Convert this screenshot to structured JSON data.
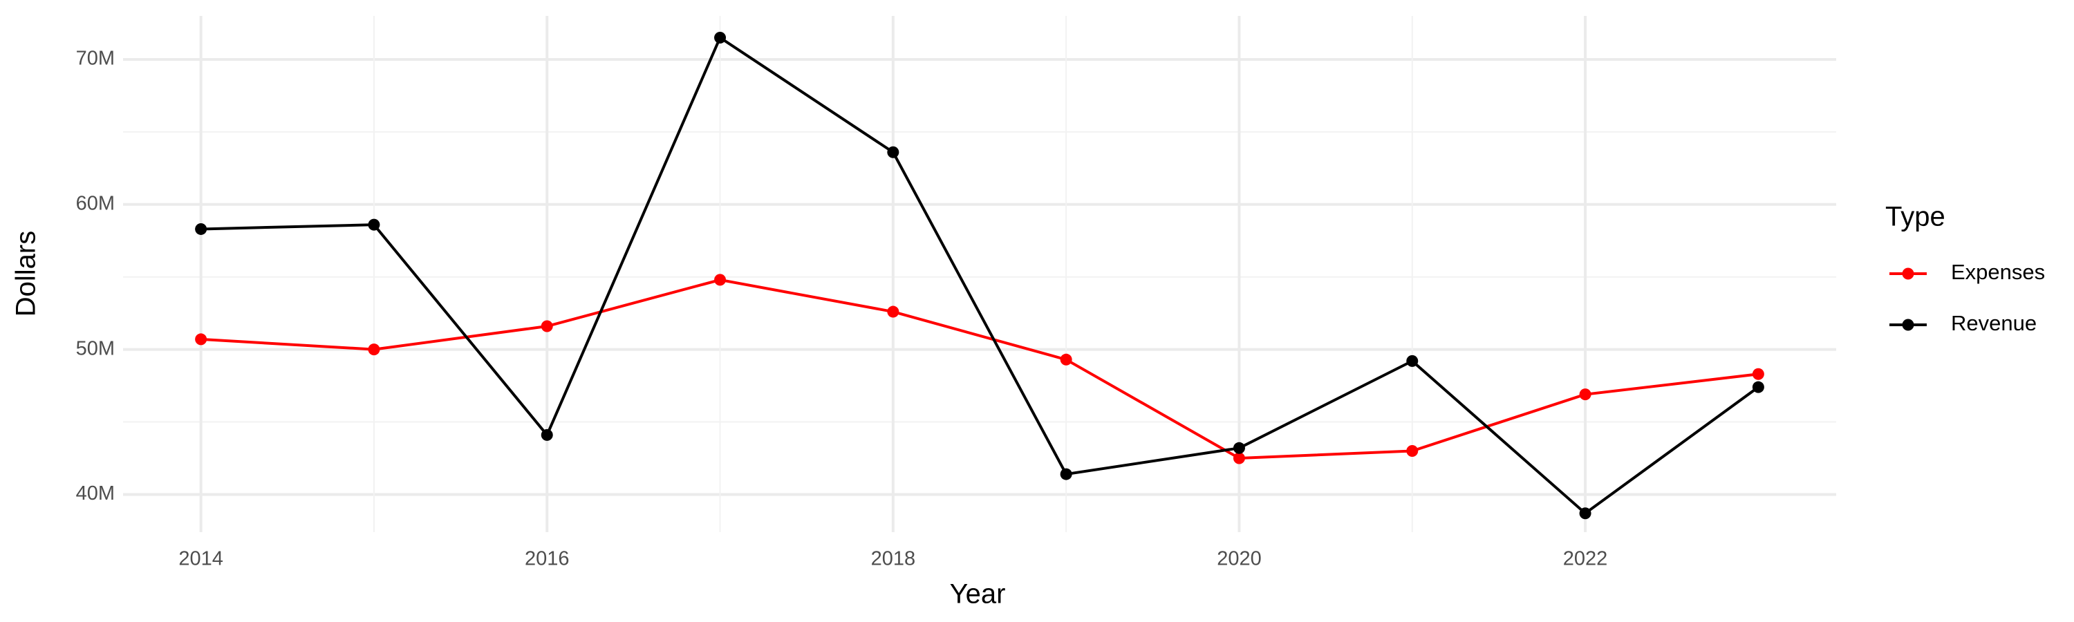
{
  "chart_data": {
    "type": "line",
    "x_label": "Year",
    "y_label": "Dollars",
    "legend_title": "Type",
    "x": [
      2014,
      2015,
      2016,
      2017,
      2018,
      2019,
      2020,
      2021,
      2022,
      2023
    ],
    "series": [
      {
        "name": "Expenses",
        "color": "#ff0000",
        "values": [
          50700000,
          50000000,
          51600000,
          54800000,
          52600000,
          49300000,
          42500000,
          43000000,
          46900000,
          48300000
        ]
      },
      {
        "name": "Revenue",
        "color": "#000000",
        "values": [
          58300000,
          58600000,
          44100000,
          71500000,
          63600000,
          41400000,
          43200000,
          49200000,
          38700000,
          47400000
        ]
      }
    ],
    "xlim": [
      2013.55,
      2023.45
    ],
    "ylim": [
      37400000,
      73000000
    ],
    "xticks": [
      2014,
      2016,
      2018,
      2020,
      2022
    ],
    "yticks": [
      {
        "value": 40000000,
        "label": "40M"
      },
      {
        "value": 50000000,
        "label": "50M"
      },
      {
        "value": 60000000,
        "label": "60M"
      },
      {
        "value": 70000000,
        "label": "70M"
      }
    ],
    "grid": true,
    "minor_grid": true,
    "legend_position": "right"
  }
}
